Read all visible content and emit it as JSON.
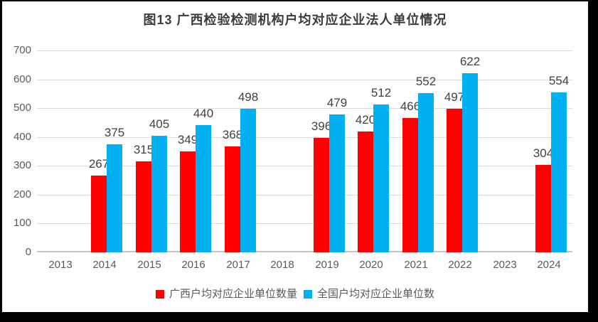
{
  "chart_data": {
    "type": "bar",
    "title": "图13 广西检验检测机构户均对应企业法人单位情况",
    "categories": [
      "2013",
      "2014",
      "2015",
      "2016",
      "2017",
      "2018",
      "2019",
      "2020",
      "2021",
      "2022",
      "2023",
      "2024"
    ],
    "series": [
      {
        "key": "guangxi",
        "name": "广西户均对应企业单位数量",
        "color": "#FF0000",
        "values": [
          null,
          267,
          315,
          349,
          368,
          null,
          396,
          420,
          466,
          497,
          null,
          304
        ]
      },
      {
        "key": "national",
        "name": "全国户均对应企业单位数",
        "color": "#00B0F0",
        "values": [
          null,
          375,
          405,
          440,
          498,
          null,
          479,
          512,
          552,
          622,
          null,
          554
        ]
      }
    ],
    "xlabel": "",
    "ylabel": "",
    "ylim": [
      0,
      700
    ],
    "yticks": [
      0,
      100,
      200,
      300,
      400,
      500,
      600,
      700
    ],
    "grid": true,
    "data_labels": true,
    "legend_position": "bottom"
  },
  "colors": {
    "frame_border": "#000000",
    "background": "#FFFFFF",
    "title_text": "#3B3B3B",
    "gridline": "#DADADA",
    "axis_line": "#C6C6C6",
    "tick_label": "#595959",
    "data_label": "#404040",
    "legend_text": "#595959"
  }
}
